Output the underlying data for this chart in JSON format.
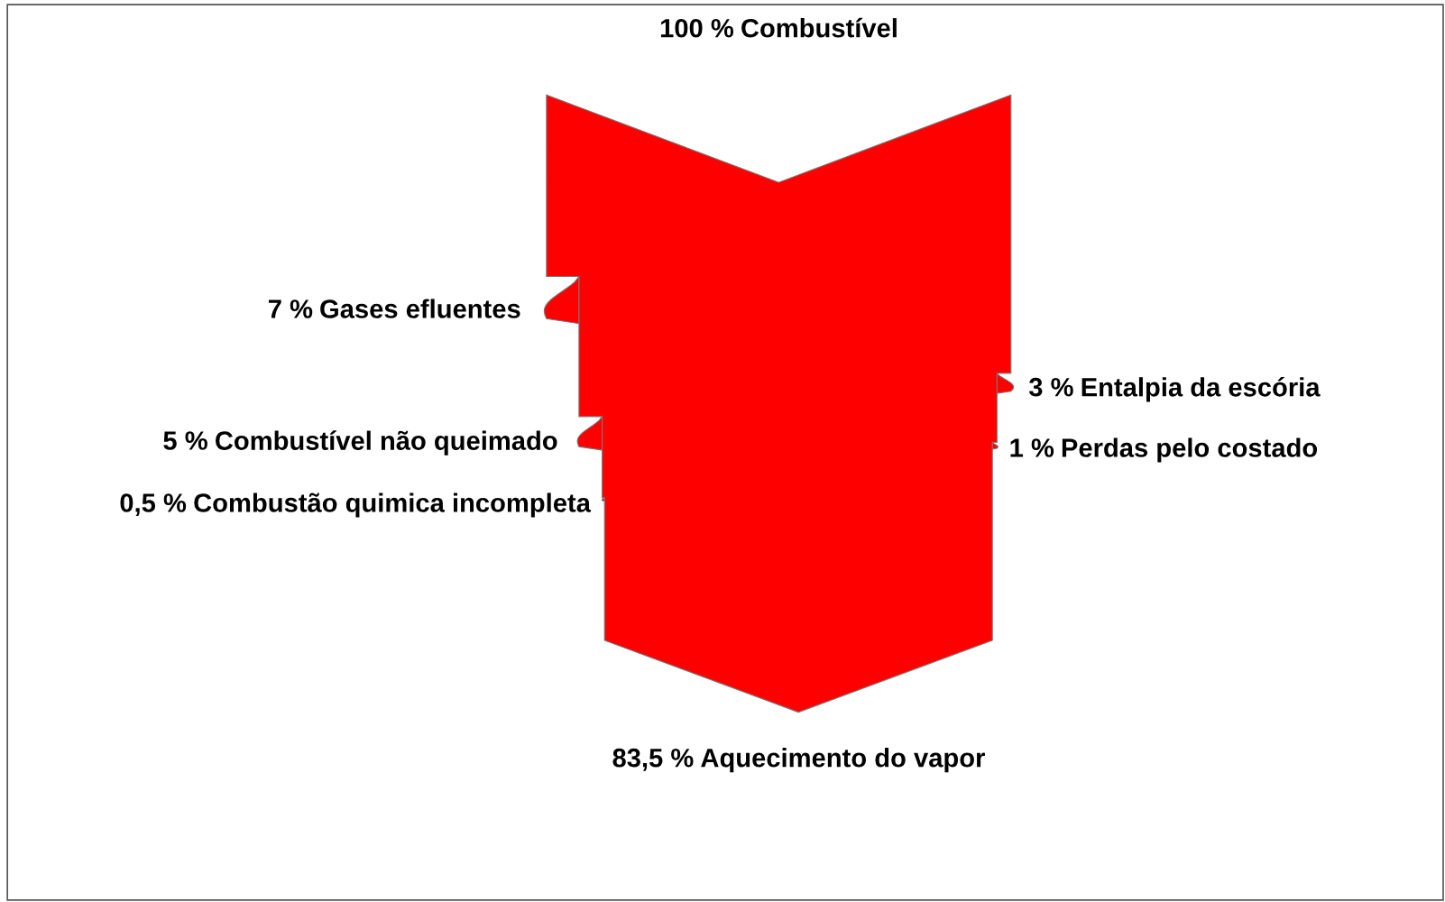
{
  "chart_data": {
    "type": "other",
    "categories": [
      "Combustível",
      "Gases efluentes",
      "Combustível não queimado",
      "Combustão quimica incompleta",
      "Entalpia da escória",
      "Perdas pelo costado",
      "Aquecimento do vapor"
    ],
    "values": [
      100,
      7,
      5,
      0.5,
      3,
      1,
      83.5
    ],
    "value_labels": [
      "100 %",
      "7 %",
      "5 %",
      "0,5 %",
      "3 %",
      "1 %",
      "83,5 %"
    ],
    "color": "#ff0000"
  }
}
